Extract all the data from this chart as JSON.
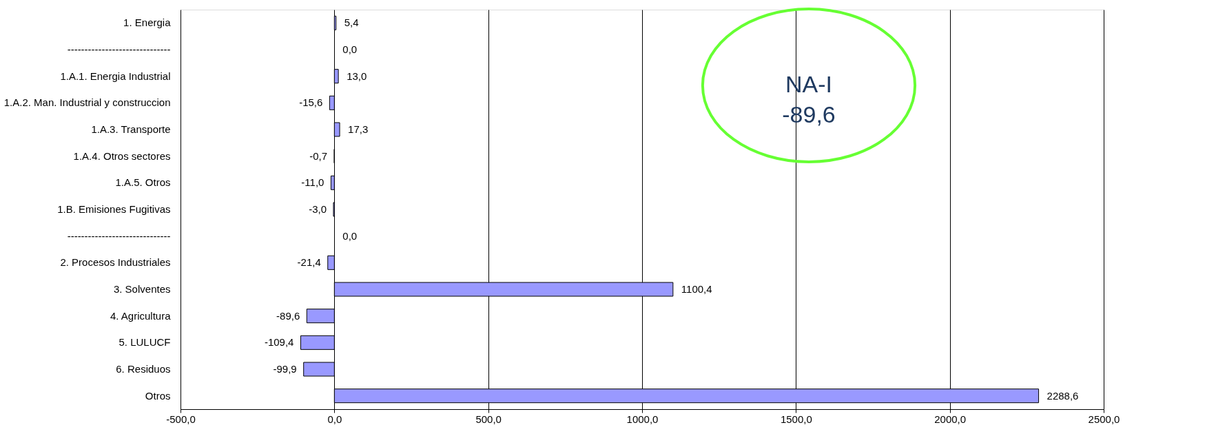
{
  "chart_data": {
    "type": "bar",
    "orientation": "horizontal",
    "categories": [
      "1. Energia",
      "------------------------------",
      "1.A.1. Energia Industrial",
      "1.A.2. Man. Industrial y construccion",
      "1.A.3. Transporte",
      "1.A.4. Otros sectores",
      "1.A.5. Otros",
      "1.B. Emisiones Fugitivas",
      "------------------------------",
      "2.  Procesos Industriales",
      "3.   Solventes",
      "4.   Agricultura",
      "5.   LULUCF",
      "6.   Residuos",
      "Otros"
    ],
    "values": [
      5.4,
      0.0,
      13.0,
      -15.6,
      17.3,
      -0.7,
      -11.0,
      -3.0,
      0.0,
      -21.4,
      1100.4,
      -89.6,
      -109.4,
      -99.9,
      2288.6
    ],
    "value_labels": [
      "5,4",
      "0,0",
      "13,0",
      "-15,6",
      "17,3",
      "-0,7",
      "-11,0",
      "-3,0",
      "0,0",
      "-21,4",
      "1100,4",
      "-89,6",
      "-109,4",
      "-99,9",
      "2288,6"
    ],
    "color": "#9999ff",
    "xlim": [
      -500,
      2500
    ],
    "xticks": [
      {
        "value": -500,
        "label": "-500,0"
      },
      {
        "value": 0,
        "label": "0,0"
      },
      {
        "value": 500,
        "label": "500,0"
      },
      {
        "value": 1000,
        "label": "1000,0"
      },
      {
        "value": 1500,
        "label": "1500,0"
      },
      {
        "value": 2000,
        "label": "2000,0"
      },
      {
        "value": 2500,
        "label": "2500,0"
      }
    ],
    "grid": "x",
    "annotations": [
      "NA-I\n-89,6"
    ]
  }
}
